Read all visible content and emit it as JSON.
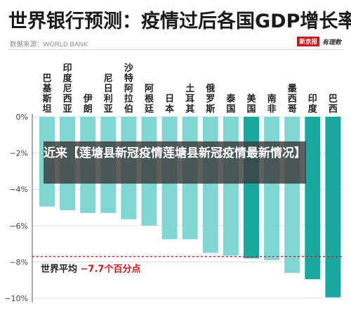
{
  "header": {
    "title": "世界银行预测：疫情过后各国GDP增长率",
    "source": "数据来源：WORLD BANK",
    "brand_box": "新京报",
    "brand_script": "有理数"
  },
  "overlay": {
    "text": "近来【莲塘县新冠疫情莲塘县新冠疫情最新情况】"
  },
  "colors": {
    "light_bar": "#7fd6d3",
    "dark_bar": "#17a89e",
    "average_line": "#c8161d"
  },
  "chart_data": {
    "type": "bar",
    "categories": [
      "巴基斯坦",
      "印度尼西亚",
      "伊朗",
      "尼日利亚",
      "沙特阿拉伯",
      "阿根廷",
      "日本",
      "土耳其",
      "俄罗斯",
      "泰国",
      "美国",
      "南非",
      "墨西哥",
      "印度",
      "巴西"
    ],
    "values": [
      -4.95,
      -5.15,
      -5.3,
      -5.3,
      -5.65,
      -6.0,
      -6.75,
      -6.75,
      -7.5,
      -7.65,
      -7.8,
      -7.9,
      -8.6,
      -8.95,
      -9.95
    ],
    "highlighted": [
      "美国",
      "印度",
      "巴西"
    ],
    "yticks": [
      0,
      -2,
      -4,
      -6,
      -8,
      -10
    ],
    "ytick_labels": [
      "0%",
      "−2%",
      "−4%",
      "−6%",
      "−8%",
      "−10%"
    ],
    "ylim": [
      -10,
      0
    ],
    "average": -7.7,
    "average_label_prefix": "世界平均",
    "average_label_value": "−7.7个百分点",
    "title": "世界银行预测：疫情过后各国GDP增长率",
    "xlabel": "",
    "ylabel": ""
  }
}
